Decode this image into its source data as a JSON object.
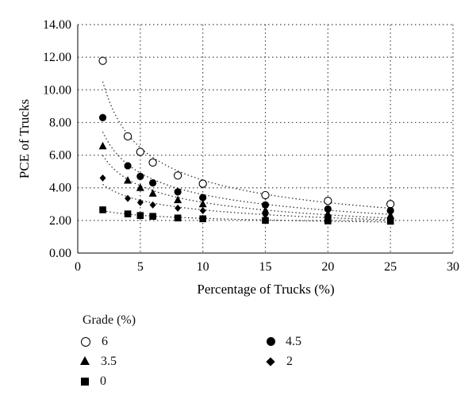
{
  "chart_data": {
    "type": "scatter",
    "xlabel": "Percentage of Trucks (%)",
    "ylabel": "PCE of Trucks",
    "xlim": [
      0,
      30
    ],
    "ylim": [
      0,
      14
    ],
    "x_ticks": [
      "0",
      "5",
      "10",
      "15",
      "20",
      "25",
      "30"
    ],
    "y_ticks": [
      "0.00",
      "2.00",
      "4.00",
      "6.00",
      "8.00",
      "10.00",
      "12.00",
      "14.00"
    ],
    "grid": "dotted",
    "trendlines": "dotted power fit per series",
    "legend": {
      "title": "Grade (%)",
      "placement": "below"
    },
    "series": [
      {
        "name": "6",
        "marker": "open-circle",
        "x": [
          2,
          4,
          5,
          6,
          8,
          10,
          15,
          20,
          25
        ],
        "y": [
          11.78,
          7.15,
          6.2,
          5.55,
          4.75,
          4.25,
          3.55,
          3.2,
          3.0
        ]
      },
      {
        "name": "4.5",
        "marker": "filled-circle",
        "x": [
          2,
          4,
          5,
          6,
          8,
          10,
          15,
          20,
          25
        ],
        "y": [
          8.3,
          5.35,
          4.7,
          4.3,
          3.75,
          3.4,
          2.95,
          2.7,
          2.6
        ]
      },
      {
        "name": "3.5",
        "marker": "triangle",
        "x": [
          2,
          4,
          5,
          6,
          8,
          10,
          15,
          20,
          25
        ],
        "y": [
          6.55,
          4.45,
          4.0,
          3.65,
          3.25,
          3.0,
          2.6,
          2.4,
          2.3
        ]
      },
      {
        "name": "2",
        "marker": "diamond",
        "x": [
          2,
          4,
          5,
          6,
          8,
          10,
          15,
          20,
          25
        ],
        "y": [
          4.6,
          3.35,
          3.1,
          2.95,
          2.75,
          2.6,
          2.35,
          2.2,
          2.15
        ]
      },
      {
        "name": "0",
        "marker": "square",
        "x": [
          2,
          4,
          5,
          6,
          8,
          10,
          15,
          20,
          25
        ],
        "y": [
          2.65,
          2.4,
          2.3,
          2.25,
          2.15,
          2.1,
          2.0,
          1.97,
          1.95
        ]
      }
    ]
  },
  "legend": {
    "title": "Grade (%)",
    "items": [
      {
        "label": "6",
        "marker": "open-circle"
      },
      {
        "label": "4.5",
        "marker": "filled-circle"
      },
      {
        "label": "3.5",
        "marker": "triangle"
      },
      {
        "label": "2",
        "marker": "diamond"
      },
      {
        "label": "0",
        "marker": "square"
      }
    ]
  }
}
